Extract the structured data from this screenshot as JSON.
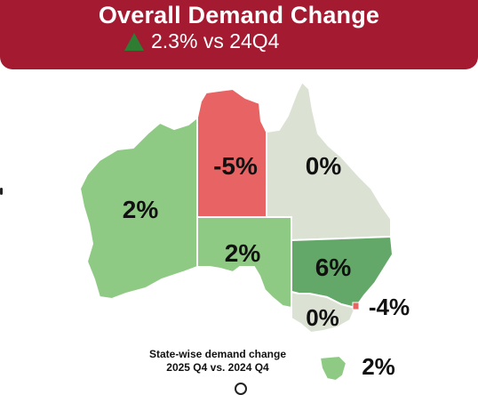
{
  "header": {
    "title": "Overall Demand Change",
    "change": "2.3% vs 24Q4",
    "trend_icon": "up-triangle-icon",
    "background_color": "#a31a31",
    "trend_color": "#2f7d32"
  },
  "map": {
    "caption_line1": "State-wise demand change",
    "caption_line2": "2025 Q4 vs. 2024 Q4",
    "regions": [
      {
        "id": "wa",
        "name": "Western Australia",
        "value_label": "2%",
        "value": 2,
        "color": "#8fca85"
      },
      {
        "id": "nt",
        "name": "Northern Territory",
        "value_label": "-5%",
        "value": -5,
        "color": "#e86464"
      },
      {
        "id": "qld",
        "name": "Queensland",
        "value_label": "0%",
        "value": 0,
        "color": "#dbe1d3"
      },
      {
        "id": "sa",
        "name": "South Australia",
        "value_label": "2%",
        "value": 2,
        "color": "#8fca85"
      },
      {
        "id": "nsw",
        "name": "New South Wales",
        "value_label": "6%",
        "value": 6,
        "color": "#64a869"
      },
      {
        "id": "act",
        "name": "Australian Capital Territory",
        "value_label": "-4%",
        "value": -4,
        "color": "#e86464"
      },
      {
        "id": "vic",
        "name": "Victoria",
        "value_label": "0%",
        "value": 0,
        "color": "#dbe1d3"
      },
      {
        "id": "tas",
        "name": "Tasmania",
        "value_label": "2%",
        "value": 2,
        "color": "#8fca85"
      }
    ]
  }
}
